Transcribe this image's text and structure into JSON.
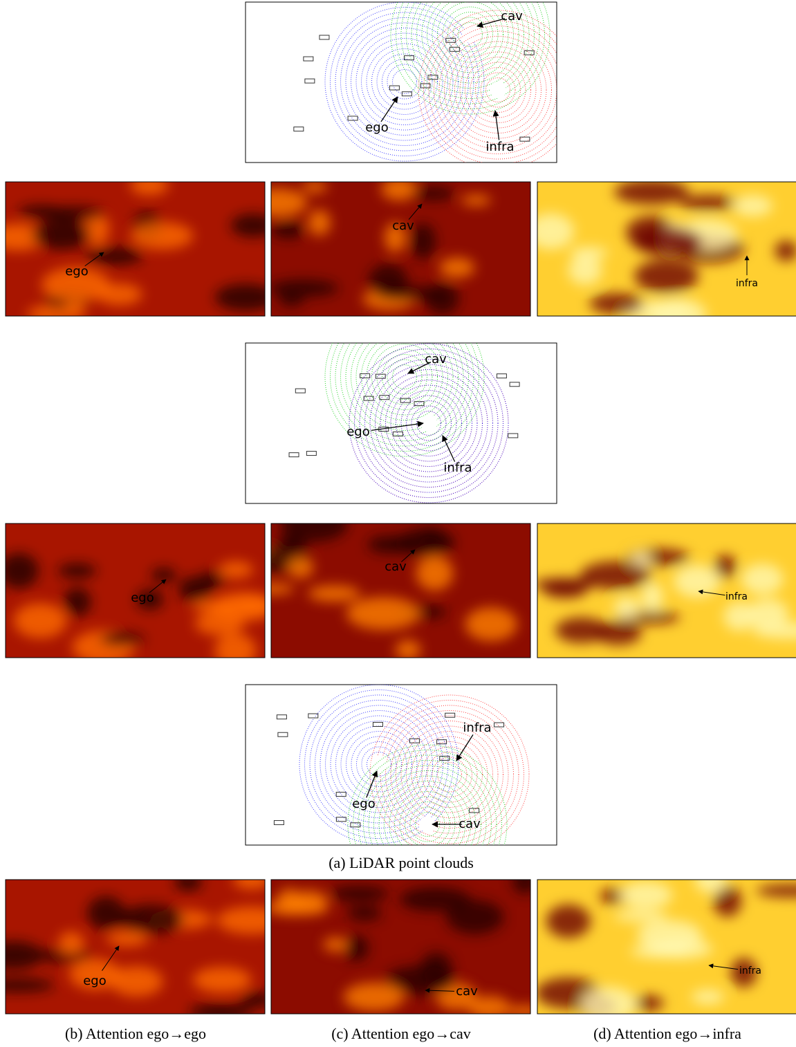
{
  "rows": [
    {
      "lidar": {
        "labels": [
          "cav",
          "ego",
          "infra"
        ]
      },
      "heatmaps": [
        {
          "label": "ego"
        },
        {
          "label": "cav"
        },
        {
          "label": "infra"
        }
      ]
    },
    {
      "lidar": {
        "labels": [
          "cav",
          "ego",
          "infra"
        ]
      },
      "heatmaps": [
        {
          "label": "ego"
        },
        {
          "label": "cav"
        },
        {
          "label": "infra"
        }
      ]
    },
    {
      "lidar": {
        "labels": [
          "infra",
          "ego",
          "cav"
        ]
      },
      "heatmaps": [
        {
          "label": "ego"
        },
        {
          "label": "cav"
        },
        {
          "label": "infra"
        }
      ]
    }
  ],
  "captions": [
    "(a) LiDAR point clouds",
    "(b) Attention ego→ego",
    "(c) Attention ego→cav",
    "(d) Attention ego→infra"
  ]
}
